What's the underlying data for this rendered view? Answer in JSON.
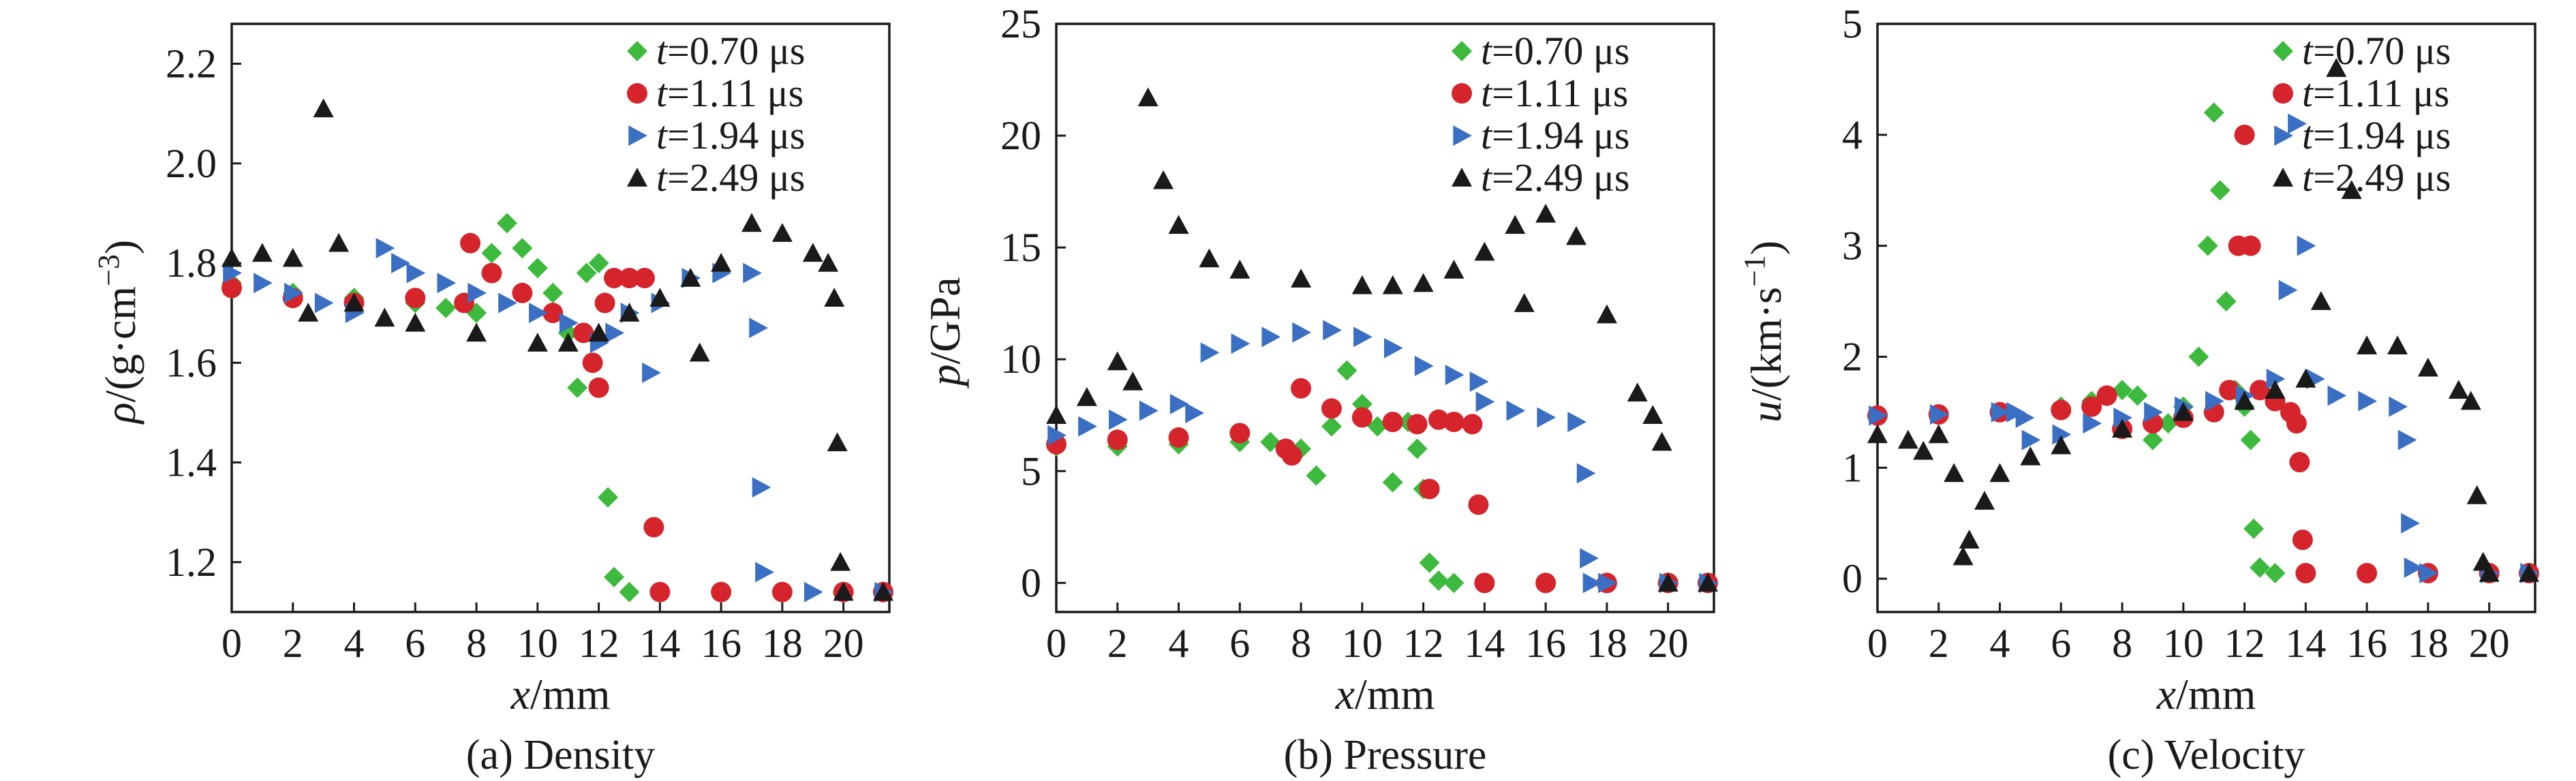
{
  "legend": [
    {
      "italic": "t",
      "text": "=0.70 μs",
      "color": "#3dba3d",
      "marker": "diamond"
    },
    {
      "italic": "t",
      "text": "=1.11 μs",
      "color": "#d6242c",
      "marker": "circle"
    },
    {
      "italic": "t",
      "text": "=1.94 μs",
      "color": "#3a6fc4",
      "marker": "triangle-right"
    },
    {
      "italic": "t",
      "text": "=2.49 μs",
      "color": "#1a1a1a",
      "marker": "triangle-up"
    }
  ],
  "chart_data": [
    {
      "type": "scatter",
      "caption": "(a) Density",
      "xlabel_italic": "x",
      "xlabel_unit": "/mm",
      "ylabel_italic": "ρ",
      "ylabel_unit": "/(g·cm",
      "ylabel_sup": "−3",
      "ylabel_close": ")",
      "xlim": [
        0,
        21.5
      ],
      "ylim": [
        1.1,
        2.28
      ],
      "xticks": [
        0,
        2,
        4,
        6,
        8,
        10,
        12,
        14,
        16,
        18,
        20
      ],
      "yticks": [
        1.2,
        1.4,
        1.6,
        1.8,
        2.0,
        2.2
      ],
      "ytick_labels": [
        "1.2",
        "1.4",
        "1.6",
        "1.8",
        "2.0",
        "2.2"
      ],
      "grid": false,
      "legend_position": "top-right",
      "series": [
        {
          "name": "t=0.70 μs",
          "x": [
            0,
            2,
            4,
            6,
            7,
            8,
            8.5,
            9,
            9.5,
            10,
            10.5,
            11,
            11.3,
            11.6,
            12,
            12.3,
            12.5,
            13,
            14,
            16,
            18,
            20,
            21.3
          ],
          "y": [
            1.76,
            1.74,
            1.73,
            1.72,
            1.71,
            1.7,
            1.82,
            1.88,
            1.83,
            1.79,
            1.74,
            1.66,
            1.55,
            1.78,
            1.8,
            1.33,
            1.17,
            1.14,
            1.14,
            1.14,
            1.14,
            1.14,
            1.14
          ]
        },
        {
          "name": "t=1.11 μs",
          "x": [
            0,
            2,
            4,
            6,
            7.6,
            7.8,
            8.5,
            9.5,
            10.5,
            11.5,
            11.8,
            12,
            12.2,
            12.5,
            13,
            13.5,
            13.8,
            14,
            16,
            18,
            20,
            21.3
          ],
          "y": [
            1.75,
            1.73,
            1.72,
            1.73,
            1.72,
            1.84,
            1.78,
            1.74,
            1.7,
            1.66,
            1.6,
            1.55,
            1.72,
            1.77,
            1.77,
            1.77,
            1.27,
            1.14,
            1.14,
            1.14,
            1.14,
            1.14
          ]
        },
        {
          "name": "t=1.94 μs",
          "x": [
            0,
            1,
            2,
            3,
            4,
            5,
            5.5,
            6,
            7,
            8,
            9,
            10,
            11,
            12,
            12.5,
            13,
            13.7,
            14,
            15,
            16,
            17,
            17.2,
            17.3,
            17.4,
            19,
            21.3
          ],
          "y": [
            1.78,
            1.76,
            1.74,
            1.72,
            1.7,
            1.83,
            1.8,
            1.78,
            1.76,
            1.74,
            1.72,
            1.7,
            1.68,
            1.64,
            1.66,
            1.7,
            1.58,
            1.72,
            1.77,
            1.78,
            1.78,
            1.67,
            1.35,
            1.18,
            1.14,
            1.14
          ]
        },
        {
          "name": "t=2.49 μs",
          "x": [
            0,
            1,
            2,
            2.5,
            3,
            3.5,
            4,
            5,
            6,
            8,
            10,
            11,
            12,
            13,
            14,
            15,
            15.3,
            16,
            17,
            18,
            19,
            19.5,
            19.7,
            19.8,
            19.9,
            20,
            21.3
          ],
          "y": [
            1.81,
            1.82,
            1.81,
            1.7,
            2.11,
            1.84,
            1.72,
            1.69,
            1.68,
            1.66,
            1.64,
            1.64,
            1.66,
            1.7,
            1.73,
            1.77,
            1.62,
            1.8,
            1.88,
            1.86,
            1.82,
            1.8,
            1.73,
            1.44,
            1.2,
            1.14,
            1.14
          ]
        }
      ]
    },
    {
      "type": "scatter",
      "caption": "(b) Pressure",
      "xlabel_italic": "x",
      "xlabel_unit": "/mm",
      "ylabel_italic": "p",
      "ylabel_unit": "/GPa",
      "ylabel_sup": "",
      "ylabel_close": "",
      "xlim": [
        0,
        21.5
      ],
      "ylim": [
        -1.3,
        25
      ],
      "xticks": [
        0,
        2,
        4,
        6,
        8,
        10,
        12,
        14,
        16,
        18,
        20
      ],
      "yticks": [
        0,
        5,
        10,
        15,
        20,
        25
      ],
      "ytick_labels": [
        "0",
        "5",
        "10",
        "15",
        "20",
        "25"
      ],
      "grid": false,
      "legend_position": "top-right",
      "series": [
        {
          "name": "t=0.70 μs",
          "x": [
            0,
            2,
            4,
            6,
            7,
            8,
            8.5,
            9,
            9.5,
            10,
            10.5,
            11,
            11.5,
            11.8,
            12,
            12.2,
            12.5,
            13,
            14,
            16,
            18,
            20,
            21.3
          ],
          "y": [
            6.1,
            6.1,
            6.2,
            6.3,
            6.3,
            6.0,
            4.8,
            7.0,
            9.5,
            8.0,
            7.0,
            4.5,
            7.2,
            6.0,
            4.2,
            0.9,
            0.1,
            0,
            0,
            0,
            0,
            0,
            0
          ]
        },
        {
          "name": "t=1.11 μs",
          "x": [
            0,
            2,
            4,
            6,
            7.5,
            7.7,
            8,
            9,
            10,
            11,
            11.8,
            12.2,
            12.5,
            13,
            13.6,
            13.8,
            14,
            16,
            18,
            20,
            21.3
          ],
          "y": [
            6.2,
            6.4,
            6.5,
            6.7,
            6.0,
            5.7,
            8.7,
            7.8,
            7.4,
            7.2,
            7.1,
            4.2,
            7.3,
            7.2,
            7.1,
            3.5,
            0,
            0,
            0,
            0,
            0
          ]
        },
        {
          "name": "t=1.94 μs",
          "x": [
            0,
            1,
            2,
            3,
            4,
            4.5,
            5,
            6,
            7,
            8,
            9,
            10,
            11,
            12,
            13,
            13.8,
            14,
            15,
            16,
            17,
            17.3,
            17.4,
            17.5,
            18,
            20,
            21.3
          ],
          "y": [
            6.6,
            7.0,
            7.3,
            7.7,
            8.0,
            7.6,
            10.3,
            10.7,
            11.0,
            11.2,
            11.3,
            11.0,
            10.5,
            9.7,
            9.3,
            9.0,
            8.1,
            7.7,
            7.4,
            7.2,
            4.9,
            1.1,
            0,
            0,
            0,
            0
          ]
        },
        {
          "name": "t=2.49 μs",
          "x": [
            0,
            1,
            2,
            2.5,
            3,
            3.5,
            4,
            5,
            6,
            8,
            10,
            11,
            12,
            13,
            14,
            15,
            15.3,
            16,
            17,
            18,
            19,
            19.5,
            19.8,
            20,
            21.3
          ],
          "y": [
            7.5,
            8.3,
            9.9,
            9.0,
            21.7,
            18.0,
            16.0,
            14.5,
            14.0,
            13.6,
            13.3,
            13.3,
            13.4,
            14.0,
            14.8,
            16.0,
            12.5,
            16.5,
            15.5,
            12.0,
            8.5,
            7.5,
            6.3,
            0,
            0
          ]
        }
      ]
    },
    {
      "type": "scatter",
      "caption": "(c) Velocity",
      "xlabel_italic": "x",
      "xlabel_unit": "/mm",
      "ylabel_italic": "u",
      "ylabel_unit": "/(km·s",
      "ylabel_sup": "−1",
      "ylabel_close": ")",
      "xlim": [
        0,
        21.5
      ],
      "ylim": [
        -0.3,
        5
      ],
      "xticks": [
        0,
        2,
        4,
        6,
        8,
        10,
        12,
        14,
        16,
        18,
        20
      ],
      "yticks": [
        0,
        1,
        2,
        3,
        4,
        5
      ],
      "ytick_labels": [
        "0",
        "1",
        "2",
        "3",
        "4",
        "5"
      ],
      "grid": false,
      "legend_position": "top-right",
      "series": [
        {
          "name": "t=0.70 μs",
          "x": [
            0,
            2,
            4,
            6,
            7,
            8,
            8.5,
            9,
            9.5,
            10,
            10.5,
            10.8,
            11,
            11.2,
            11.4,
            11.7,
            12,
            12.2,
            12.3,
            12.5,
            13,
            14,
            16,
            18,
            20,
            21.3
          ],
          "y": [
            1.47,
            1.48,
            1.5,
            1.55,
            1.6,
            1.7,
            1.65,
            1.25,
            1.4,
            1.55,
            2.0,
            3.0,
            4.2,
            3.5,
            2.5,
            1.7,
            1.55,
            1.25,
            0.45,
            0.1,
            0.05,
            0.05,
            0.05,
            0.05,
            0.05,
            0.05
          ]
        },
        {
          "name": "t=1.11 μs",
          "x": [
            0,
            2,
            4,
            6,
            7,
            7.5,
            8,
            9,
            10,
            11,
            11.5,
            11.8,
            12,
            12.2,
            12.5,
            13,
            13.5,
            13.7,
            13.8,
            13.9,
            14,
            16,
            18,
            20,
            21.3
          ],
          "y": [
            1.47,
            1.48,
            1.5,
            1.52,
            1.55,
            1.65,
            1.35,
            1.4,
            1.45,
            1.5,
            1.7,
            3.0,
            4.0,
            3.0,
            1.7,
            1.6,
            1.5,
            1.4,
            1.05,
            0.35,
            0.05,
            0.05,
            0.05,
            0.05,
            0.05
          ]
        },
        {
          "name": "t=1.94 μs",
          "x": [
            0,
            2,
            4,
            4.5,
            4.8,
            5,
            6,
            7,
            8,
            9,
            10,
            11,
            12,
            13,
            13.4,
            13.7,
            14,
            14.3,
            15,
            16,
            17,
            17.3,
            17.4,
            17.5,
            18,
            20,
            21.3
          ],
          "y": [
            1.47,
            1.48,
            1.5,
            1.5,
            1.45,
            1.25,
            1.3,
            1.4,
            1.45,
            1.5,
            1.55,
            1.6,
            1.65,
            1.8,
            2.6,
            4.1,
            3.0,
            1.8,
            1.65,
            1.6,
            1.55,
            1.25,
            0.5,
            0.1,
            0.05,
            0.05,
            0.05
          ]
        },
        {
          "name": "t=2.49 μs",
          "x": [
            0,
            1,
            1.5,
            2,
            2.5,
            2.8,
            3,
            3.5,
            4,
            5,
            6,
            8,
            10,
            12,
            13,
            14,
            14.5,
            15,
            15.5,
            16,
            17,
            18,
            19,
            19.4,
            19.6,
            19.8,
            20,
            21.3
          ],
          "y": [
            1.3,
            1.25,
            1.15,
            1.3,
            0.95,
            0.2,
            0.35,
            0.7,
            0.95,
            1.1,
            1.2,
            1.35,
            1.5,
            1.6,
            1.7,
            1.8,
            2.5,
            4.6,
            3.5,
            2.1,
            2.1,
            1.9,
            1.7,
            1.6,
            0.75,
            0.15,
            0.05,
            0.05
          ]
        }
      ]
    }
  ]
}
